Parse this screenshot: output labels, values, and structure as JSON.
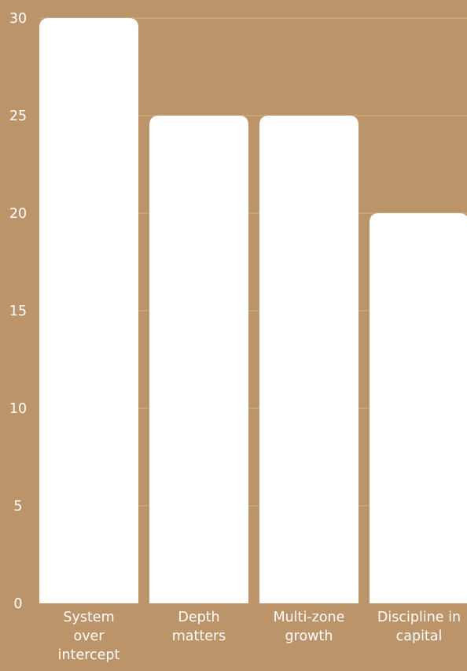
{
  "colors": {
    "background": "#bc946a",
    "bar": "#ffffff",
    "grid": "#d2b08c",
    "text": "#ffffff"
  },
  "chart_data": {
    "type": "bar",
    "title": "",
    "xlabel": "",
    "ylabel": "",
    "grid": true,
    "legend": "none",
    "ylim": [
      0,
      30
    ],
    "yticks": [
      0,
      5,
      10,
      15,
      20,
      25,
      30
    ],
    "categories": [
      "System over intercept",
      "Depth matters",
      "Multi-zone growth",
      "Discipline in capital"
    ],
    "category_label_lines": [
      [
        "System",
        "over",
        "intercept"
      ],
      [
        "Depth",
        "matters"
      ],
      [
        "Multi-zone",
        "growth"
      ],
      [
        "Discipline in",
        "capital"
      ]
    ],
    "values": [
      30,
      25,
      25,
      20
    ]
  }
}
